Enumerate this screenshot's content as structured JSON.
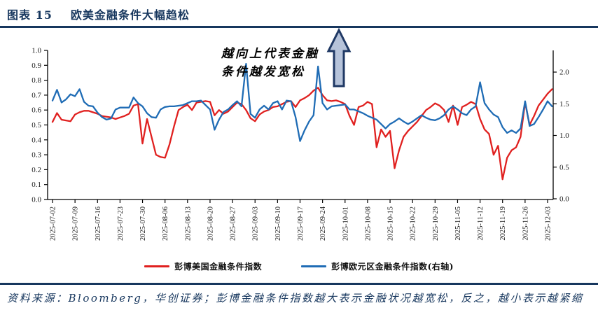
{
  "header": {
    "figure_label": "图表 15",
    "title": "欧美金融条件大幅趋松"
  },
  "annotation": {
    "line1": "越向上代表金融",
    "line2": "条件越发宽松",
    "arrow_fill": "#b6c3da",
    "arrow_border": "#1f3864"
  },
  "footer": {
    "text": "资料来源：Bloomberg，华创证券；彭博金融条件指数越大表示金融状况越宽松，反之，越小表示越紧缩"
  },
  "colors": {
    "navy": "#17375e",
    "axis": "#000000",
    "tick_text": "#1a1a1a"
  },
  "chart_data": {
    "type": "line",
    "title": "欧美金融条件大幅趋松",
    "grid": false,
    "legend_position": "bottom",
    "left_axis": {
      "min": 0.0,
      "max": 1.0,
      "tick_labels": [
        "1.0",
        "0.9",
        "0.8",
        "0.7",
        "0.6",
        "0.5",
        "0.4",
        "0.3",
        "0.2",
        "0.1",
        "0.0"
      ]
    },
    "right_axis": {
      "min": 0.0,
      "max": 2.0,
      "tick_labels": [
        "2.0",
        "1.5",
        "1.0",
        "0.5",
        "0.0"
      ]
    },
    "x_tick_labels": [
      "2025-07-02",
      "2025-07-09",
      "2025-07-16",
      "2025-07-23",
      "2025-07-30",
      "2025-08-06",
      "2025-08-13",
      "2025-08-20",
      "2025-08-27",
      "2025-09-03",
      "2025-09-10",
      "2025-09-17",
      "2025-09-24",
      "2025-10-01",
      "2025-10-08",
      "2025-10-15",
      "2025-10-22",
      "2025-10-29",
      "2025-11-05",
      "2025-11-12",
      "2025-11-19",
      "2025-11-26",
      "2025-12-03"
    ],
    "dates": [
      "07-02",
      "07-03",
      "07-04",
      "07-07",
      "07-08",
      "07-09",
      "07-10",
      "07-11",
      "07-14",
      "07-15",
      "07-16",
      "07-17",
      "07-18",
      "07-21",
      "07-22",
      "07-23",
      "07-24",
      "07-25",
      "07-28",
      "07-29",
      "07-30",
      "07-31",
      "08-01",
      "08-04",
      "08-05",
      "08-06",
      "08-07",
      "08-08",
      "08-11",
      "08-12",
      "08-13",
      "08-14",
      "08-15",
      "08-18",
      "08-19",
      "08-20",
      "08-21",
      "08-22",
      "08-25",
      "08-26",
      "08-27",
      "08-28",
      "08-29",
      "09-01",
      "09-02",
      "09-03",
      "09-04",
      "09-05",
      "09-08",
      "09-09",
      "09-10",
      "09-11",
      "09-12",
      "09-15",
      "09-16",
      "09-17",
      "09-18",
      "09-19",
      "09-22",
      "09-23",
      "09-24",
      "09-25",
      "09-26",
      "09-29",
      "09-30",
      "10-01",
      "10-02",
      "10-03",
      "10-06",
      "10-07",
      "10-08",
      "10-09",
      "10-10",
      "10-13",
      "10-14",
      "10-15",
      "10-16",
      "10-17",
      "10-20",
      "10-21",
      "10-22",
      "10-23",
      "10-24",
      "10-27",
      "10-28",
      "10-29",
      "10-30",
      "10-31",
      "11-03",
      "11-04",
      "11-05",
      "11-06",
      "11-07",
      "11-10",
      "11-11",
      "11-12",
      "11-13",
      "11-14",
      "11-17",
      "11-18",
      "11-19",
      "11-20",
      "11-21",
      "11-24",
      "11-25",
      "11-26",
      "11-27",
      "11-28",
      "12-01",
      "12-02",
      "12-03",
      "12-04"
    ],
    "series": [
      {
        "name": "彭博美国金融条件指数",
        "axis": "left",
        "color": "#e0201f",
        "values": [
          0.52,
          0.58,
          0.535,
          0.53,
          0.525,
          0.57,
          0.585,
          0.595,
          0.595,
          0.585,
          0.575,
          0.56,
          0.555,
          0.55,
          0.54,
          0.55,
          0.56,
          0.575,
          0.63,
          0.64,
          0.375,
          0.54,
          0.42,
          0.3,
          0.285,
          0.28,
          0.37,
          0.49,
          0.6,
          0.62,
          0.635,
          0.6,
          0.65,
          0.655,
          0.66,
          0.655,
          0.565,
          0.6,
          0.575,
          0.59,
          0.62,
          0.65,
          0.64,
          0.6,
          0.545,
          0.525,
          0.57,
          0.59,
          0.6,
          0.62,
          0.625,
          0.64,
          0.655,
          0.66,
          0.62,
          0.665,
          0.68,
          0.7,
          0.73,
          0.75,
          0.7,
          0.665,
          0.66,
          0.665,
          0.655,
          0.64,
          0.56,
          0.5,
          0.62,
          0.63,
          0.655,
          0.64,
          0.35,
          0.47,
          0.42,
          0.46,
          0.21,
          0.33,
          0.42,
          0.46,
          0.49,
          0.52,
          0.56,
          0.6,
          0.62,
          0.645,
          0.63,
          0.6,
          0.52,
          0.63,
          0.5,
          0.62,
          0.635,
          0.655,
          0.64,
          0.54,
          0.47,
          0.44,
          0.3,
          0.36,
          0.135,
          0.28,
          0.33,
          0.35,
          0.42,
          0.65,
          0.5,
          0.56,
          0.63,
          0.67,
          0.71,
          0.74
        ]
      },
      {
        "name": "彭博欧元区金融条件指数(右轴)",
        "axis": "right",
        "color": "#1f6cb5",
        "values": [
          1.55,
          1.72,
          1.52,
          1.57,
          1.65,
          1.62,
          1.73,
          1.53,
          1.47,
          1.46,
          1.36,
          1.29,
          1.25,
          1.27,
          1.41,
          1.44,
          1.44,
          1.44,
          1.6,
          1.51,
          1.46,
          1.35,
          1.29,
          1.28,
          1.41,
          1.45,
          1.46,
          1.46,
          1.47,
          1.48,
          1.51,
          1.54,
          1.54,
          1.55,
          1.48,
          1.41,
          1.09,
          1.25,
          1.37,
          1.41,
          1.48,
          1.54,
          1.46,
          2.13,
          1.34,
          1.28,
          1.41,
          1.47,
          1.41,
          1.51,
          1.54,
          1.41,
          1.55,
          1.54,
          1.29,
          0.91,
          1.08,
          1.22,
          1.32,
          2.09,
          1.51,
          1.41,
          1.46,
          1.47,
          1.48,
          1.49,
          1.41,
          1.41,
          1.38,
          1.35,
          1.31,
          1.28,
          1.25,
          1.18,
          1.11,
          1.18,
          1.22,
          1.27,
          1.22,
          1.18,
          1.22,
          1.27,
          1.32,
          1.28,
          1.25,
          1.24,
          1.27,
          1.32,
          1.41,
          1.46,
          1.41,
          1.35,
          1.32,
          1.41,
          1.46,
          1.84,
          1.51,
          1.41,
          1.33,
          1.29,
          1.13,
          1.04,
          1.08,
          1.04,
          1.11,
          1.54,
          1.15,
          1.18,
          1.29,
          1.41,
          1.54,
          1.46
        ]
      }
    ]
  }
}
